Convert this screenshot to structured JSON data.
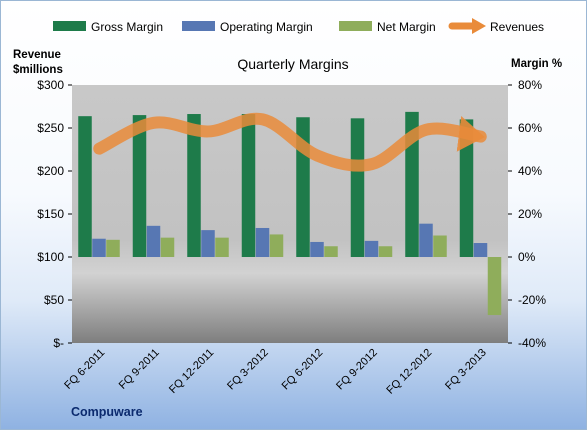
{
  "chart_data": {
    "type": "bar",
    "title": "Quarterly Margins",
    "company": "Compuware",
    "left_axis": {
      "label": [
        "Revenue",
        "$millions"
      ],
      "range": [
        0,
        300
      ],
      "ticks": [
        "$-",
        "$50",
        "$100",
        "$150",
        "$200",
        "$250",
        "$300"
      ]
    },
    "right_axis": {
      "label": "Margin %",
      "range": [
        -40,
        80
      ],
      "ticks": [
        "-40%",
        "-20%",
        "0%",
        "20%",
        "40%",
        "60%",
        "80%"
      ]
    },
    "categories": [
      "FQ 6-2011",
      "FQ 9-2011",
      "FQ 12-2011",
      "FQ 3-2012",
      "FQ 6-2012",
      "FQ 9-2012",
      "FQ 12-2012",
      "FQ 3-2013"
    ],
    "series": [
      {
        "name": "Gross Margin",
        "type": "bar",
        "axis": "right",
        "color": "#1e7b4a",
        "values": [
          65.5,
          66,
          66.5,
          66.5,
          65,
          64.5,
          67.5,
          64
        ]
      },
      {
        "name": "Operating Margin",
        "type": "bar",
        "axis": "right",
        "color": "#5777b3",
        "values": [
          8.5,
          14.5,
          12.5,
          13.5,
          7,
          7.5,
          15.5,
          6.5
        ]
      },
      {
        "name": "Net Margin",
        "type": "bar",
        "axis": "right",
        "color": "#8fad5b",
        "values": [
          8,
          9,
          9,
          10.5,
          5,
          5,
          10,
          -27
        ]
      },
      {
        "name": "Revenues",
        "type": "line",
        "axis": "left",
        "color": "#e98b3a",
        "values": [
          226,
          256,
          246,
          260,
          218,
          208,
          248,
          240
        ]
      }
    ],
    "grid": false,
    "legend": "top"
  }
}
